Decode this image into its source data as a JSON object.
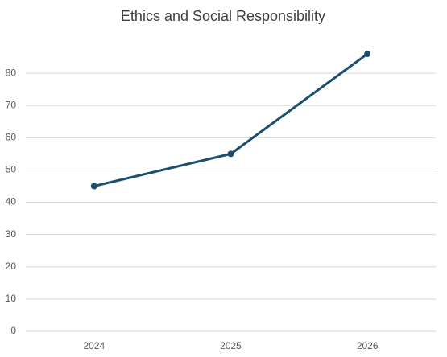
{
  "chart_data": {
    "type": "line",
    "title": "Ethics and Social Responsibility",
    "categories": [
      "2024",
      "2025",
      "2026"
    ],
    "values": [
      45,
      55,
      86
    ],
    "color": "#1b4f6f",
    "ylim": [
      0,
      90
    ],
    "yticks": [
      0,
      10,
      20,
      30,
      40,
      50,
      60,
      70,
      80
    ],
    "grid": true
  }
}
